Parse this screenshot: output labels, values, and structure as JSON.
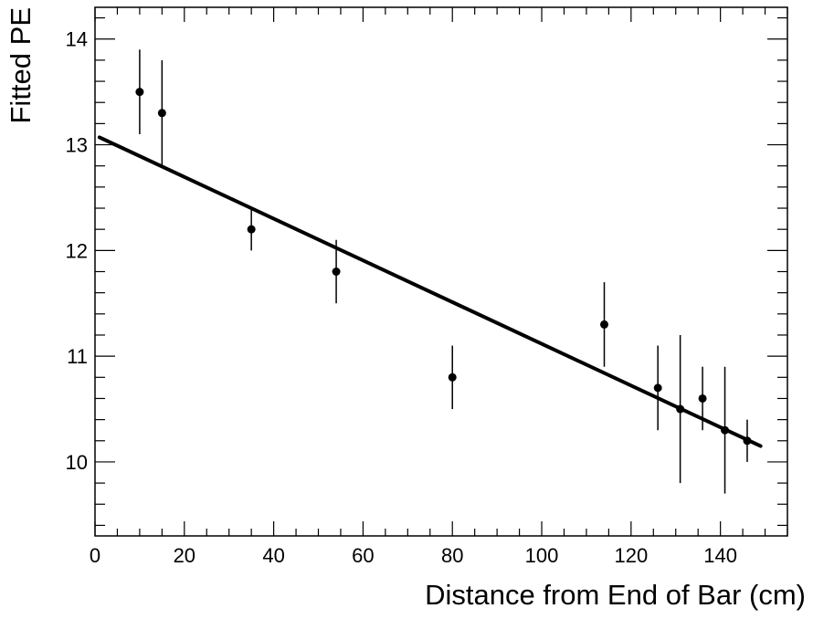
{
  "chart_data": {
    "type": "scatter",
    "title": "",
    "xlabel": "Distance from End of Bar (cm)",
    "ylabel": "Fitted PE",
    "xlim": [
      0,
      155
    ],
    "ylim": [
      9.3,
      14.3
    ],
    "x_ticks": [
      0,
      20,
      40,
      60,
      80,
      100,
      120,
      140
    ],
    "y_ticks": [
      10,
      11,
      12,
      13,
      14
    ],
    "grid": false,
    "series": [
      {
        "type": "errorbar",
        "points": [
          {
            "x": 10,
            "y": 13.5,
            "err": 0.4
          },
          {
            "x": 15,
            "y": 13.3,
            "err": 0.5
          },
          {
            "x": 35,
            "y": 12.2,
            "err": 0.2
          },
          {
            "x": 54,
            "y": 11.8,
            "err": 0.3
          },
          {
            "x": 80,
            "y": 10.8,
            "err": 0.3
          },
          {
            "x": 114,
            "y": 11.3,
            "err": 0.4
          },
          {
            "x": 126,
            "y": 10.7,
            "err": 0.4
          },
          {
            "x": 131,
            "y": 10.5,
            "err": 0.7
          },
          {
            "x": 136,
            "y": 10.6,
            "err": 0.3
          },
          {
            "x": 141,
            "y": 10.3,
            "err": 0.6
          },
          {
            "x": 146,
            "y": 10.2,
            "err": 0.2
          }
        ]
      },
      {
        "type": "fit-line",
        "x": [
          1,
          149
        ],
        "y": [
          13.07,
          10.15
        ]
      }
    ]
  }
}
